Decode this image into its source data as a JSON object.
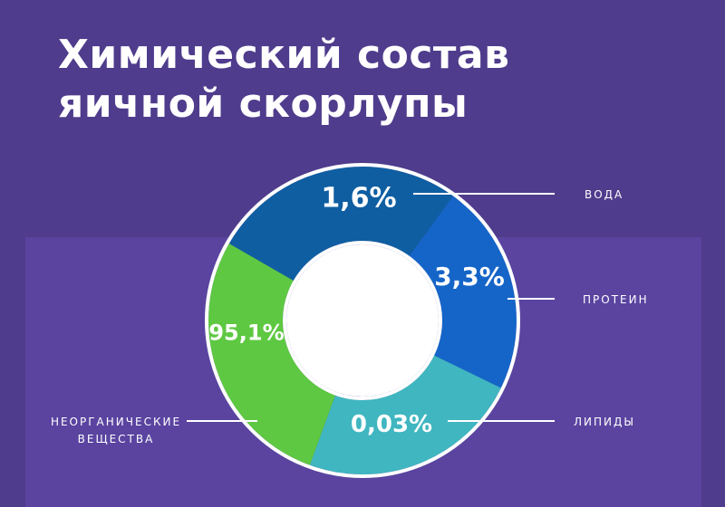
{
  "title": {
    "line1": "Химический состав",
    "line2": "яичной скорлупы"
  },
  "chart_data": {
    "type": "pie",
    "title": "Химический состав яичной скорлупы",
    "slices": [
      {
        "label": "ВОДА",
        "value_label": "1,6%",
        "value": 1.6,
        "color": "#0f5ea2"
      },
      {
        "label": "ПРОТЕИН",
        "value_label": "3,3%",
        "value": 3.3,
        "color": "#1565c8"
      },
      {
        "label": "ЛИПИДЫ",
        "value_label": "0,03%",
        "value": 0.03,
        "color": "#3fb6c0"
      },
      {
        "label": "НЕОРГАНИЧЕСКИЕ ВЕЩЕСТВА",
        "label_lines": [
          "НЕОРГАНИЧЕСКИЕ",
          "ВЕЩЕСТВА"
        ],
        "value_label": "95,1%",
        "value": 95.1,
        "color": "#5ec842"
      }
    ],
    "colors": {
      "background": "#4f3c8c",
      "panel": "#5a44a0",
      "ring_border": "#ffffff"
    }
  }
}
